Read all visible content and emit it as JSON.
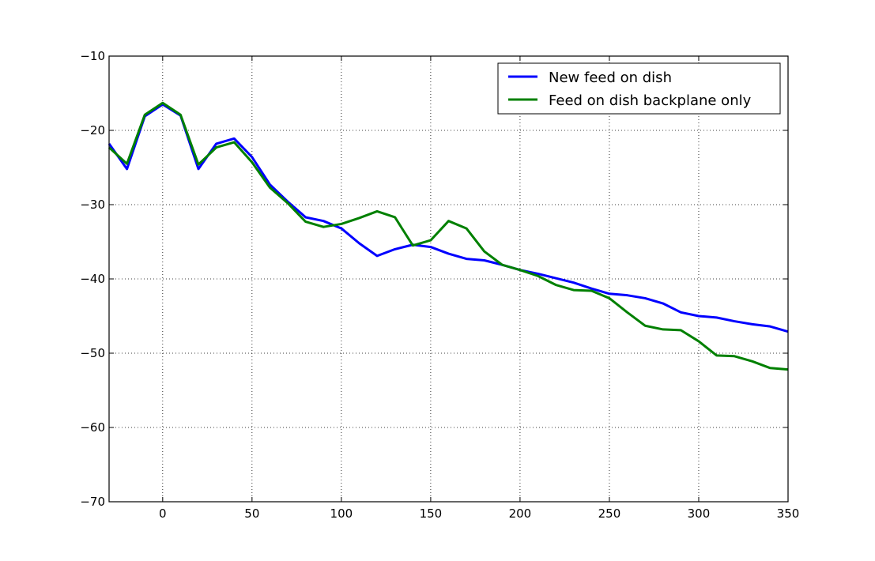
{
  "chart_data": {
    "type": "line",
    "title": "",
    "xlabel": "",
    "ylabel": "",
    "xlim": [
      -30,
      350
    ],
    "ylim": [
      -70,
      -10
    ],
    "xticks": [
      0,
      50,
      100,
      150,
      200,
      250,
      300,
      350
    ],
    "yticks": [
      -10,
      -20,
      -30,
      -40,
      -50,
      -60,
      -70
    ],
    "xtick_labels": [
      "0",
      "50",
      "100",
      "150",
      "200",
      "250",
      "300",
      "350"
    ],
    "ytick_labels": [
      "−10",
      "−20",
      "−30",
      "−40",
      "−50",
      "−60",
      "−70"
    ],
    "grid": true,
    "legend_position": "top-right",
    "series": [
      {
        "name": "New feed on dish",
        "color": "#0000ff",
        "x": [
          -30,
          -20,
          -10,
          0,
          10,
          20,
          30,
          40,
          50,
          60,
          70,
          80,
          90,
          100,
          110,
          120,
          130,
          140,
          150,
          160,
          170,
          180,
          190,
          200,
          210,
          220,
          230,
          240,
          250,
          260,
          270,
          280,
          290,
          300,
          310,
          320,
          330,
          340,
          350
        ],
        "y": [
          -21.8,
          -25.2,
          -18.1,
          -16.5,
          -18.0,
          -25.2,
          -21.8,
          -21.1,
          -23.6,
          -27.3,
          -29.6,
          -31.7,
          -32.2,
          -33.2,
          -35.2,
          -36.9,
          -36.0,
          -35.4,
          -35.7,
          -36.6,
          -37.3,
          -37.5,
          -38.1,
          -38.8,
          -39.3,
          -39.9,
          -40.5,
          -41.3,
          -42.0,
          -42.2,
          -42.6,
          -43.3,
          -44.5,
          -45.0,
          -45.2,
          -45.7,
          -46.1,
          -46.4,
          -47.1
        ]
      },
      {
        "name": "Feed on dish backplane only",
        "color": "#008000",
        "x": [
          -30,
          -20,
          -10,
          0,
          10,
          20,
          30,
          40,
          50,
          60,
          70,
          80,
          90,
          100,
          110,
          120,
          130,
          140,
          150,
          160,
          170,
          180,
          190,
          200,
          210,
          220,
          230,
          240,
          250,
          260,
          270,
          280,
          290,
          300,
          310,
          320,
          330,
          340,
          350
        ],
        "y": [
          -22.3,
          -24.5,
          -17.9,
          -16.3,
          -17.9,
          -24.6,
          -22.3,
          -21.6,
          -24.3,
          -27.7,
          -29.8,
          -32.3,
          -33.0,
          -32.6,
          -31.8,
          -30.9,
          -31.7,
          -35.5,
          -34.8,
          -32.2,
          -33.2,
          -36.3,
          -38.1,
          -38.8,
          -39.6,
          -40.8,
          -41.5,
          -41.6,
          -42.6,
          -44.5,
          -46.3,
          -46.8,
          -46.9,
          -48.4,
          -50.3,
          -50.4,
          -51.1,
          -52.0,
          -52.2
        ]
      }
    ]
  }
}
